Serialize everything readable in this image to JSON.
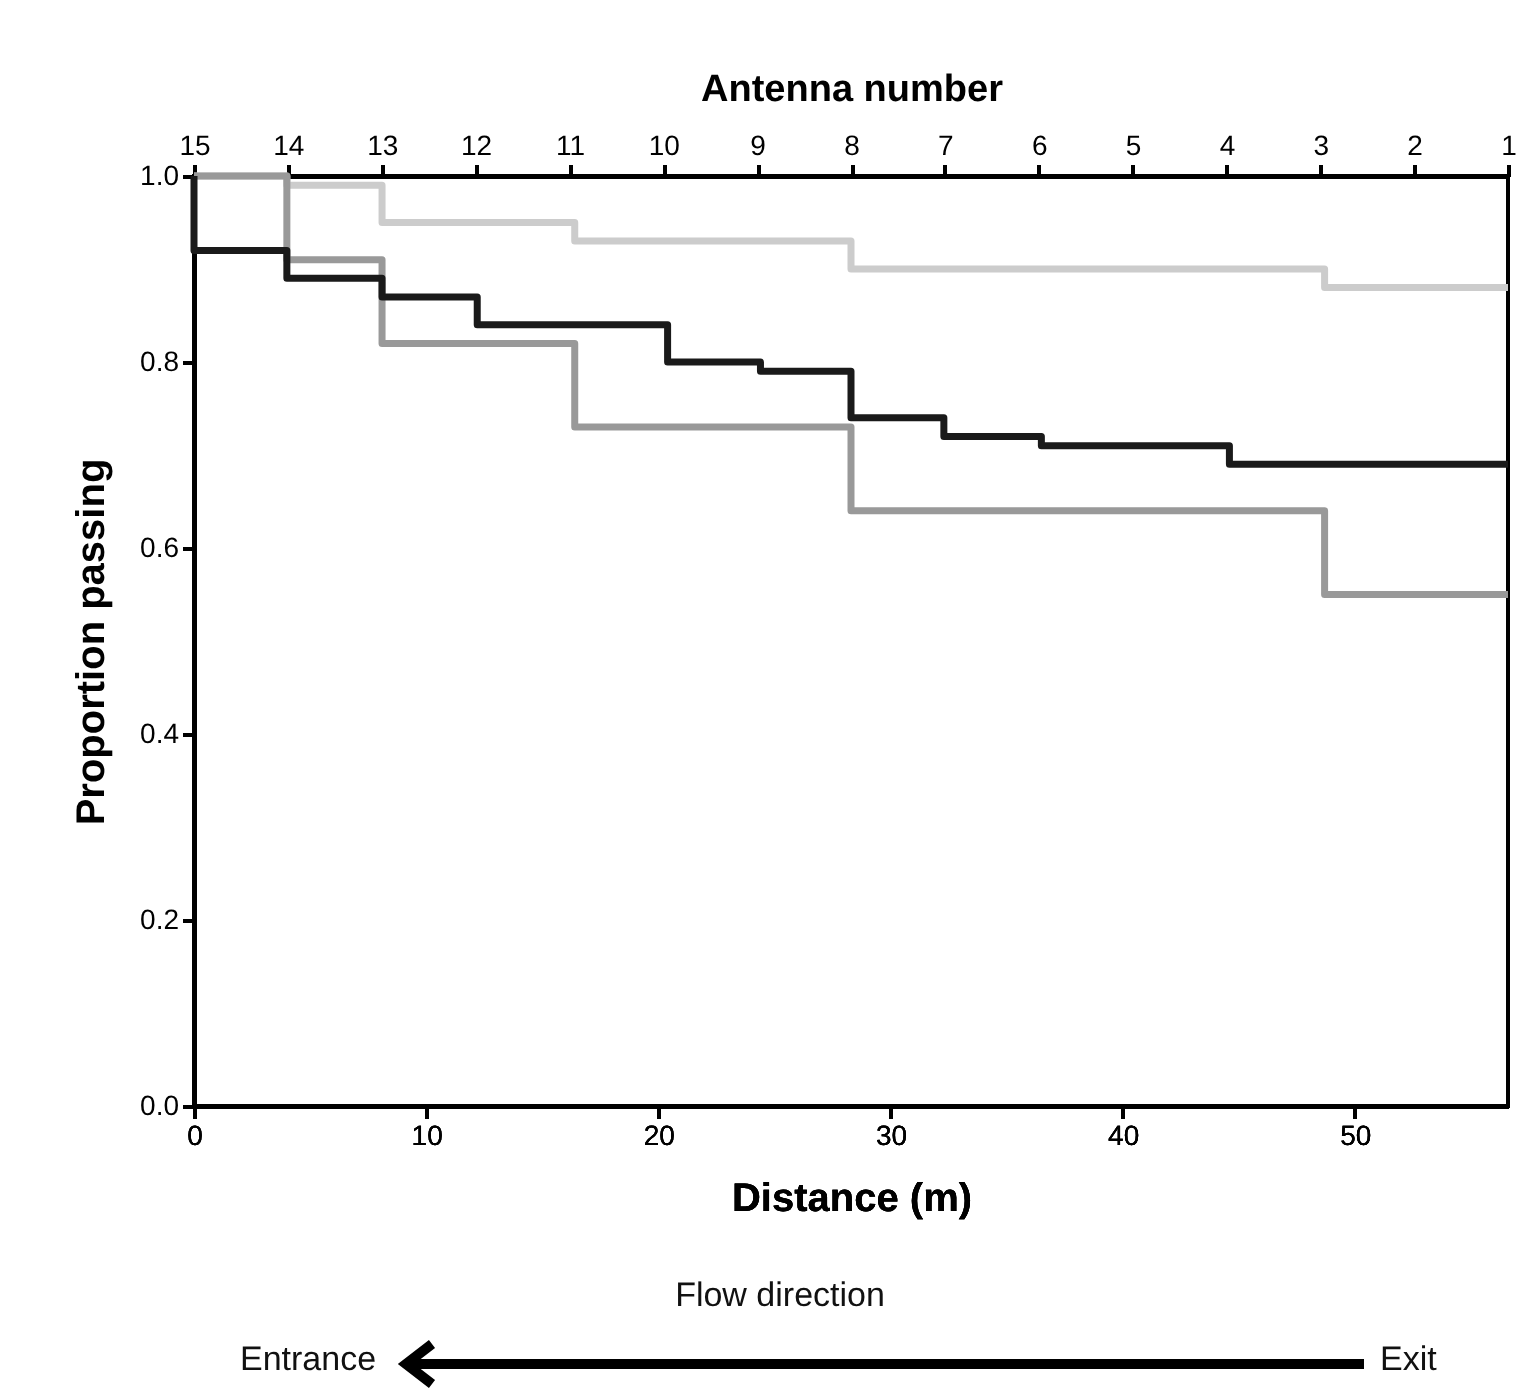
{
  "chart_data": {
    "type": "step",
    "xlabel": "Distance (m)",
    "ylabel": "Proportion passing",
    "x2label": "Antenna number",
    "xlim": [
      0,
      56.6
    ],
    "xticks": [
      0,
      10,
      20,
      30,
      40,
      50
    ],
    "x2lim": [
      15,
      1
    ],
    "x2ticks": [
      15,
      14,
      13,
      12,
      11,
      10,
      9,
      8,
      7,
      6,
      5,
      4,
      3,
      2,
      1
    ],
    "ylim": [
      0,
      1
    ],
    "yticks": [
      {
        "value": 0,
        "label": "0.0"
      },
      {
        "value": 0.2,
        "label": "0.2"
      },
      {
        "value": 0.4,
        "label": "0.4"
      },
      {
        "value": 0.6,
        "label": "0.6"
      },
      {
        "value": 0.8,
        "label": "0.8"
      },
      {
        "value": 1,
        "label": "1.0"
      }
    ],
    "series": [
      {
        "color": "#cccccc",
        "x": [
          0,
          4,
          8.1,
          16.4,
          28.3,
          48.7,
          56.6
        ],
        "values": [
          1.0,
          0.99,
          0.95,
          0.93,
          0.9,
          0.88,
          0.88
        ]
      },
      {
        "color": "#999999",
        "x": [
          0,
          4,
          8.1,
          16.4,
          28.3,
          48.7,
          56.6
        ],
        "values": [
          1.0,
          0.91,
          0.82,
          0.73,
          0.64,
          0.55,
          0.55
        ]
      },
      {
        "color": "#1a1a1a",
        "x": [
          0,
          0,
          4,
          8.1,
          12.2,
          20.4,
          24.4,
          28.3,
          32.3,
          36.5,
          44.6,
          56.6
        ],
        "values": [
          1.0,
          0.92,
          0.89,
          0.87,
          0.84,
          0.8,
          0.79,
          0.74,
          0.72,
          0.71,
          0.69,
          0.69
        ]
      }
    ],
    "annotations": [
      "Flow direction",
      "Entrance",
      "Exit"
    ],
    "grid": false,
    "marker": "none",
    "line_style": "solid"
  }
}
